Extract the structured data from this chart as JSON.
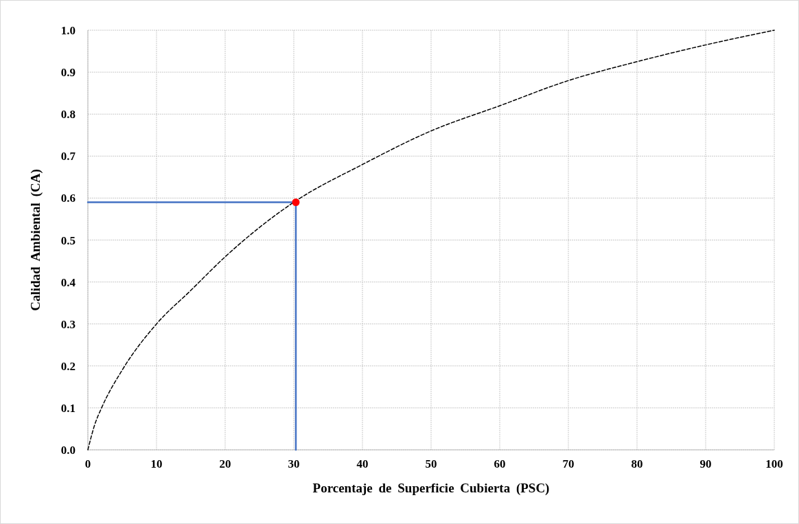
{
  "chart_data": {
    "type": "line",
    "xlabel": "Porcentaje de Superficie Cubierta (PSC)",
    "ylabel": "Calidad Ambiental (CA)",
    "xlim": [
      0,
      100
    ],
    "xticks": [
      0,
      10,
      20,
      30,
      40,
      50,
      60,
      70,
      80,
      90,
      100
    ],
    "ylim": [
      0,
      1
    ],
    "yticks": [
      {
        "value": 0,
        "label": "0.0"
      },
      0.1,
      0.2,
      0.3,
      0.4,
      0.5,
      0.6,
      0.7,
      0.8,
      0.9,
      {
        "value": 1,
        "label": "1.0"
      }
    ],
    "grid": true,
    "series": [
      {
        "color": "#000000",
        "line_style": "dashed",
        "marker": "none",
        "x": [
          0,
          1,
          2,
          5,
          10,
          15,
          20,
          25,
          30,
          40,
          50,
          60,
          70,
          80,
          90,
          100
        ],
        "values": [
          0,
          0.06,
          0.1,
          0.19,
          0.3,
          0.38,
          0.46,
          0.53,
          0.59,
          0.68,
          0.76,
          0.82,
          0.88,
          0.925,
          0.965,
          1.0
        ]
      },
      {
        "color": "#4472c4",
        "line_style": "solid",
        "marker": "none",
        "x": [
          0,
          30.3,
          30.3
        ],
        "values": [
          0.59,
          0.59,
          0
        ]
      },
      {
        "type": "scatter",
        "color": "#ff0000",
        "marker": "circle",
        "x": [
          30.3
        ],
        "values": [
          0.59
        ]
      }
    ]
  }
}
